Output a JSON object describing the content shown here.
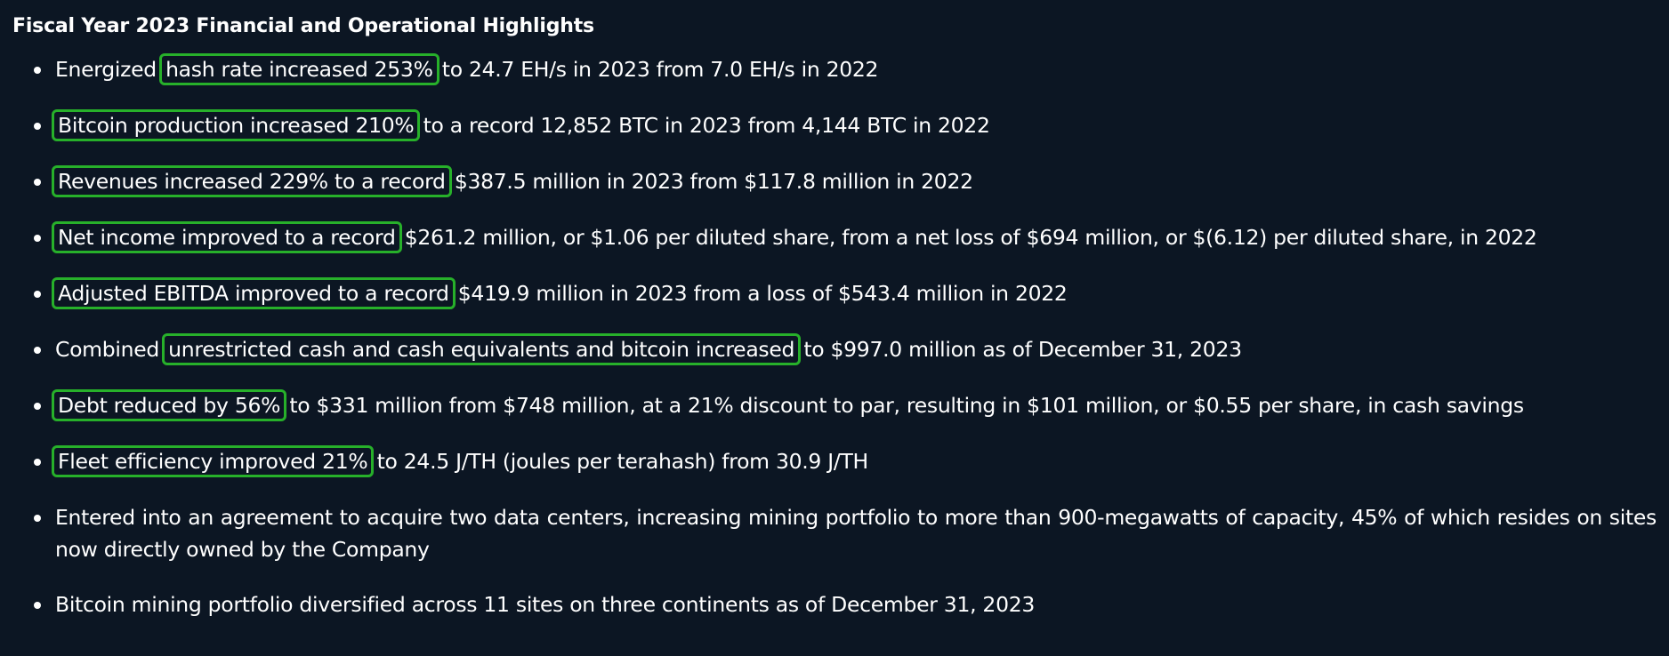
{
  "title": "Fiscal Year 2023 Financial and Operational Highlights",
  "highlight_color": "#27b02a",
  "background_color": "#0c1623",
  "items": [
    {
      "pre": "Energized ",
      "hl": "hash rate increased 253%",
      "post": " to 24.7 EH/s in 2023 from 7.0 EH/s in 2022"
    },
    {
      "pre": "",
      "hl": "Bitcoin production increased 210%",
      "post": " to a record 12,852 BTC in 2023 from 4,144 BTC in 2022"
    },
    {
      "pre": "",
      "hl": "Revenues increased 229% to a record",
      "post": " $387.5 million in 2023 from $117.8 million in 2022"
    },
    {
      "pre": "",
      "hl": "Net income improved to a record",
      "post": " $261.2 million, or $1.06 per diluted share, from a net loss of $694 million, or $(6.12) per diluted share, in 2022"
    },
    {
      "pre": "",
      "hl": "Adjusted EBITDA improved to a record",
      "post": " $419.9 million in 2023 from a loss of $543.4 million in 2022"
    },
    {
      "pre": "Combined ",
      "hl": "unrestricted cash and cash equivalents and bitcoin increased",
      "post": " to $997.0 million as of December 31, 2023"
    },
    {
      "pre": "",
      "hl": "Debt reduced by 56%",
      "post": " to $331 million from $748 million, at a 21% discount to par, resulting in $101 million, or $0.55 per share, in cash savings"
    },
    {
      "pre": "",
      "hl": "Fleet efficiency improved 21%",
      "post": " to 24.5 J/TH (joules per terahash) from 30.9 J/TH"
    },
    {
      "text": "Entered into an agreement to acquire two data centers, increasing mining portfolio to more than 900-megawatts of capacity, 45% of which resides on sites now directly owned by the Company"
    },
    {
      "text": "Bitcoin mining portfolio diversified across 11 sites on three continents as of December 31, 2023"
    }
  ]
}
